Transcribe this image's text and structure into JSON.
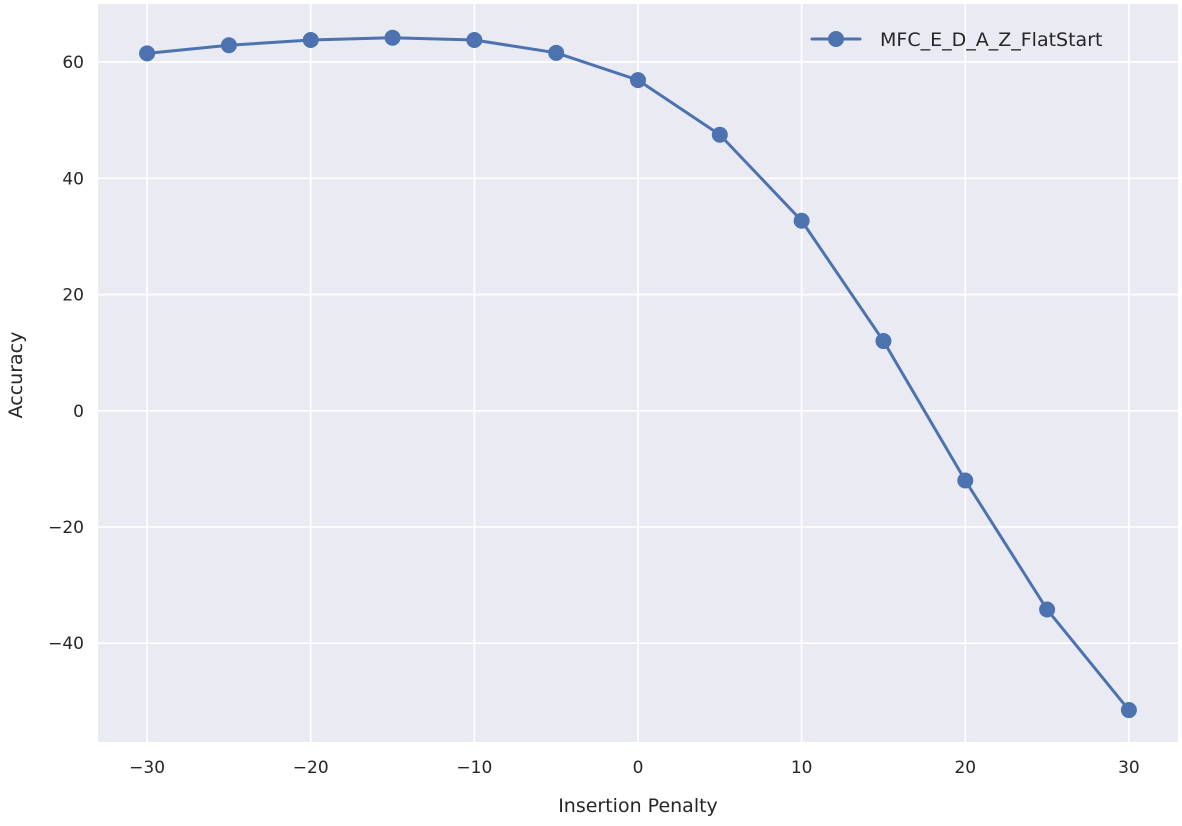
{
  "chart_data": {
    "type": "line",
    "title": "",
    "xlabel": "Insertion Penalty",
    "ylabel": "Accuracy",
    "xlim": [
      -33,
      33
    ],
    "ylim": [
      -57,
      70
    ],
    "xticks": [
      -30,
      -20,
      -10,
      0,
      10,
      20,
      30
    ],
    "yticks": [
      -40,
      -20,
      0,
      20,
      40,
      60
    ],
    "grid": true,
    "legend_position": "top-right",
    "series": [
      {
        "name": "MFC_E_D_A_Z_FlatStart",
        "color": "#4c72b0",
        "marker": "circle",
        "x": [
          -30,
          -25,
          -20,
          -15,
          -10,
          -5,
          0,
          5,
          10,
          15,
          20,
          25,
          30
        ],
        "y": [
          61.5,
          62.9,
          63.8,
          64.2,
          63.8,
          61.6,
          56.9,
          47.5,
          32.7,
          12.0,
          -12.0,
          -34.2,
          -51.5
        ]
      }
    ]
  },
  "style": {
    "plot_background": "#eaeaf2",
    "grid_color": "#ffffff",
    "page_background": "#ffffff"
  }
}
